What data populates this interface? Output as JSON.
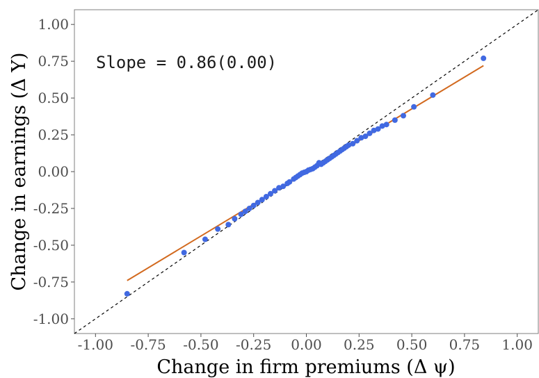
{
  "chart_data": {
    "type": "scatter",
    "title": "",
    "xlabel": "Change in firm premiums (Δ ψ)",
    "ylabel": "Change in earnings (Δ Y)",
    "annotation": "Slope = 0.86(0.00)",
    "xlim": [
      -1.1,
      1.1
    ],
    "ylim": [
      -1.1,
      1.1
    ],
    "x_ticks": [
      -1.0,
      -0.75,
      -0.5,
      -0.25,
      0.0,
      0.25,
      0.5,
      0.75,
      1.0
    ],
    "x_tick_labels": [
      "-1.00",
      "-0.75",
      "-0.50",
      "-0.25",
      "0.00",
      "0.25",
      "0.50",
      "0.75",
      "1.00"
    ],
    "y_ticks": [
      1.0,
      0.75,
      0.5,
      0.25,
      0.0,
      -0.25,
      -0.5,
      -0.75,
      -1.0
    ],
    "y_tick_labels": [
      "1.00",
      "0.75",
      "0.50",
      "0.25",
      "0.00",
      "-0.25",
      "-0.50",
      "-0.75",
      "-1.00"
    ],
    "grid": false,
    "colors": {
      "points": "#4169e1",
      "fit_line": "#d2691e",
      "reference_line": "#000000"
    },
    "fit_line": {
      "slope": 0.86,
      "x_range": [
        -0.85,
        0.84
      ],
      "y_start": -0.74,
      "y_end": 0.72
    },
    "reference_line": {
      "slope": 1.0,
      "intercept": 0.0,
      "style": "dashed"
    },
    "points": [
      [
        -0.85,
        -0.83
      ],
      [
        -0.58,
        -0.55
      ],
      [
        -0.48,
        -0.46
      ],
      [
        -0.42,
        -0.39
      ],
      [
        -0.37,
        -0.36
      ],
      [
        -0.34,
        -0.32
      ],
      [
        -0.31,
        -0.29
      ],
      [
        -0.29,
        -0.27
      ],
      [
        -0.27,
        -0.25
      ],
      [
        -0.25,
        -0.23
      ],
      [
        -0.23,
        -0.21
      ],
      [
        -0.21,
        -0.19
      ],
      [
        -0.19,
        -0.17
      ],
      [
        -0.17,
        -0.15
      ],
      [
        -0.15,
        -0.13
      ],
      [
        -0.13,
        -0.11
      ],
      [
        -0.11,
        -0.1
      ],
      [
        -0.09,
        -0.08
      ],
      [
        -0.08,
        -0.07
      ],
      [
        -0.06,
        -0.05
      ],
      [
        -0.05,
        -0.04
      ],
      [
        -0.04,
        -0.03
      ],
      [
        -0.03,
        -0.02
      ],
      [
        -0.02,
        -0.01
      ],
      [
        -0.01,
        -0.005
      ],
      [
        0.0,
        0.0
      ],
      [
        0.01,
        0.01
      ],
      [
        0.02,
        0.015
      ],
      [
        0.03,
        0.02
      ],
      [
        0.04,
        0.03
      ],
      [
        0.05,
        0.04
      ],
      [
        0.06,
        0.06
      ],
      [
        0.07,
        0.05
      ],
      [
        0.08,
        0.06
      ],
      [
        0.09,
        0.07
      ],
      [
        0.1,
        0.08
      ],
      [
        0.11,
        0.09
      ],
      [
        0.12,
        0.1
      ],
      [
        0.13,
        0.11
      ],
      [
        0.14,
        0.12
      ],
      [
        0.15,
        0.13
      ],
      [
        0.16,
        0.14
      ],
      [
        0.17,
        0.15
      ],
      [
        0.18,
        0.16
      ],
      [
        0.19,
        0.17
      ],
      [
        0.2,
        0.18
      ],
      [
        0.22,
        0.19
      ],
      [
        0.24,
        0.21
      ],
      [
        0.26,
        0.23
      ],
      [
        0.28,
        0.24
      ],
      [
        0.3,
        0.26
      ],
      [
        0.32,
        0.28
      ],
      [
        0.34,
        0.29
      ],
      [
        0.36,
        0.31
      ],
      [
        0.38,
        0.32
      ],
      [
        0.42,
        0.35
      ],
      [
        0.46,
        0.38
      ],
      [
        0.51,
        0.44
      ],
      [
        0.6,
        0.52
      ],
      [
        0.84,
        0.77
      ]
    ]
  }
}
